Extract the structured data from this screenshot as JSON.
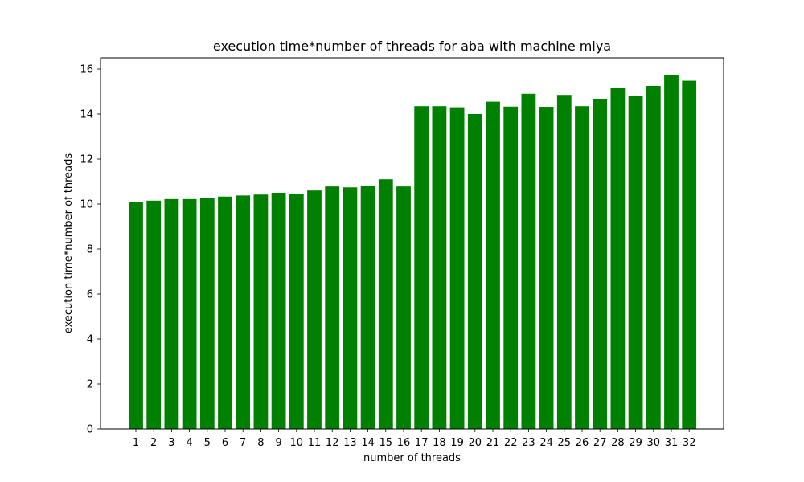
{
  "chart_data": {
    "type": "bar",
    "title": "execution time*number of threads for aba with machine miya",
    "xlabel": "number of threads",
    "ylabel": "execution time*number of threads",
    "categories": [
      "1",
      "2",
      "3",
      "4",
      "5",
      "6",
      "7",
      "8",
      "9",
      "10",
      "11",
      "12",
      "13",
      "14",
      "15",
      "16",
      "17",
      "18",
      "19",
      "20",
      "21",
      "22",
      "23",
      "24",
      "25",
      "26",
      "27",
      "28",
      "29",
      "30",
      "31",
      "32"
    ],
    "values": [
      10.1,
      10.15,
      10.22,
      10.22,
      10.27,
      10.33,
      10.38,
      10.42,
      10.5,
      10.45,
      10.6,
      10.78,
      10.74,
      10.8,
      11.1,
      10.78,
      14.35,
      14.35,
      14.3,
      14.0,
      14.55,
      14.33,
      14.9,
      14.32,
      14.85,
      14.35,
      14.68,
      15.18,
      14.82,
      15.25,
      15.75,
      15.48
    ],
    "yticks": [
      0,
      2,
      4,
      6,
      8,
      10,
      12,
      14,
      16
    ],
    "ylim": [
      0,
      16.5
    ],
    "bar_color": "#008000",
    "grid": false,
    "legend": "none"
  }
}
